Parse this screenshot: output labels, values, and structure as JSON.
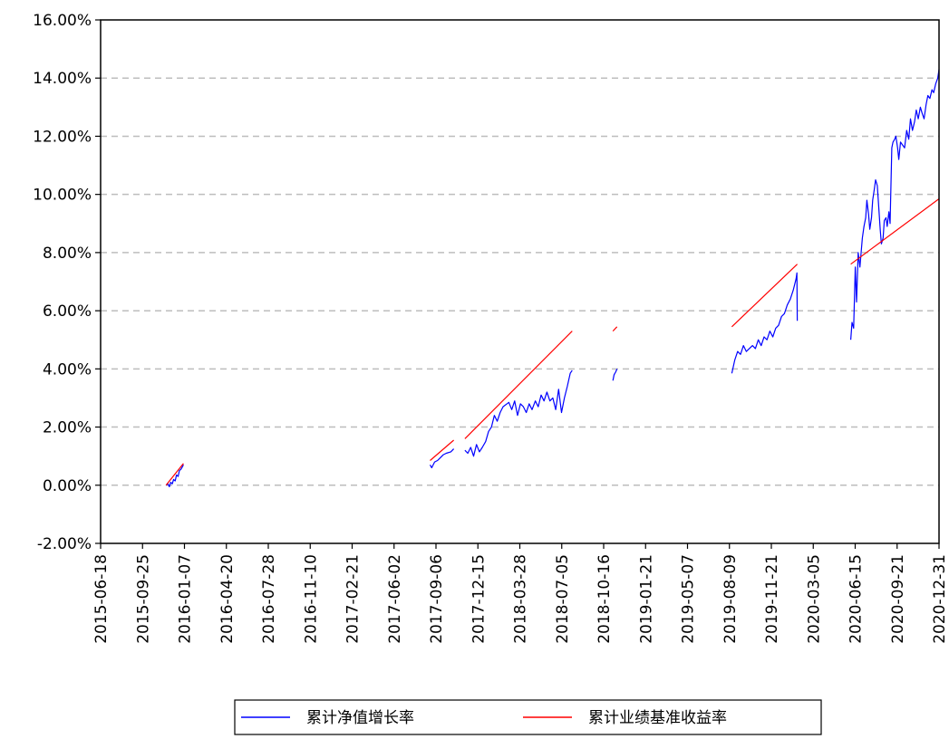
{
  "chart_data": {
    "type": "line",
    "title": "",
    "xlabel": "",
    "ylabel": "",
    "x_ticks": [
      "2015-06-18",
      "2015-09-25",
      "2016-01-07",
      "2016-04-20",
      "2016-07-28",
      "2016-11-10",
      "2017-02-21",
      "2017-06-02",
      "2017-09-06",
      "2017-12-15",
      "2018-03-28",
      "2018-07-05",
      "2018-10-16",
      "2019-01-21",
      "2019-05-07",
      "2019-08-09",
      "2019-11-21",
      "2020-03-05",
      "2020-06-15",
      "2020-09-21",
      "2020-12-31"
    ],
    "y_ticks": [
      "-2.00%",
      "0.00%",
      "2.00%",
      "4.00%",
      "6.00%",
      "8.00%",
      "10.00%",
      "12.00%",
      "14.00%",
      "16.00%"
    ],
    "ylim": [
      -2,
      16
    ],
    "xlim": [
      "2015-06-18",
      "2020-12-31"
    ],
    "grid": "horizontal dashed",
    "legend_position": "bottom-center",
    "series": [
      {
        "name": "累计净值增长率",
        "color": "#0000ff",
        "segments": [
          [
            [
              "2015-11-23",
              0.0
            ],
            [
              "2015-11-27",
              0.05
            ],
            [
              "2015-12-01",
              -0.05
            ],
            [
              "2015-12-04",
              0.1
            ],
            [
              "2015-12-08",
              0.05
            ],
            [
              "2015-12-11",
              0.2
            ],
            [
              "2015-12-15",
              0.15
            ],
            [
              "2015-12-18",
              0.35
            ],
            [
              "2015-12-22",
              0.3
            ],
            [
              "2015-12-25",
              0.5
            ],
            [
              "2015-12-29",
              0.55
            ],
            [
              "2016-01-04",
              0.7
            ]
          ],
          [
            [
              "2017-08-21",
              0.7
            ],
            [
              "2017-08-25",
              0.6
            ],
            [
              "2017-09-01",
              0.8
            ],
            [
              "2017-09-08",
              0.85
            ],
            [
              "2017-09-15",
              0.95
            ],
            [
              "2017-09-22",
              1.05
            ],
            [
              "2017-09-29",
              1.1
            ],
            [
              "2017-10-10",
              1.15
            ],
            [
              "2017-10-17",
              1.25
            ]
          ],
          [
            [
              "2017-11-13",
              1.2
            ],
            [
              "2017-11-20",
              1.1
            ],
            [
              "2017-11-27",
              1.3
            ],
            [
              "2017-12-04",
              1.0
            ],
            [
              "2017-12-11",
              1.4
            ],
            [
              "2017-12-18",
              1.15
            ],
            [
              "2017-12-25",
              1.3
            ],
            [
              "2018-01-02",
              1.5
            ],
            [
              "2018-01-09",
              1.85
            ],
            [
              "2018-01-16",
              2.0
            ],
            [
              "2018-01-23",
              2.4
            ],
            [
              "2018-01-30",
              2.2
            ],
            [
              "2018-02-06",
              2.5
            ],
            [
              "2018-02-13",
              2.7
            ],
            [
              "2018-02-27",
              2.85
            ],
            [
              "2018-03-06",
              2.6
            ],
            [
              "2018-03-13",
              2.9
            ],
            [
              "2018-03-20",
              2.4
            ],
            [
              "2018-03-27",
              2.8
            ],
            [
              "2018-04-03",
              2.7
            ],
            [
              "2018-04-10",
              2.5
            ],
            [
              "2018-04-17",
              2.8
            ],
            [
              "2018-04-24",
              2.6
            ],
            [
              "2018-05-02",
              2.9
            ],
            [
              "2018-05-09",
              2.7
            ],
            [
              "2018-05-16",
              3.1
            ],
            [
              "2018-05-23",
              2.9
            ],
            [
              "2018-05-30",
              3.2
            ],
            [
              "2018-06-06",
              2.9
            ],
            [
              "2018-06-13",
              3.0
            ],
            [
              "2018-06-20",
              2.6
            ],
            [
              "2018-06-27",
              3.3
            ],
            [
              "2018-07-04",
              2.5
            ],
            [
              "2018-07-11",
              3.0
            ],
            [
              "2018-07-18",
              3.4
            ],
            [
              "2018-07-25",
              3.85
            ],
            [
              "2018-07-30",
              3.95
            ]
          ],
          [
            [
              "2018-11-05",
              3.6
            ],
            [
              "2018-11-08",
              3.8
            ],
            [
              "2018-11-12",
              3.9
            ],
            [
              "2018-11-15",
              4.0
            ]
          ],
          [
            [
              "2019-08-19",
              3.85
            ],
            [
              "2019-08-26",
              4.3
            ],
            [
              "2019-09-02",
              4.6
            ],
            [
              "2019-09-09",
              4.5
            ],
            [
              "2019-09-16",
              4.8
            ],
            [
              "2019-09-23",
              4.6
            ],
            [
              "2019-10-08",
              4.8
            ],
            [
              "2019-10-15",
              4.7
            ],
            [
              "2019-10-22",
              5.0
            ],
            [
              "2019-10-29",
              4.8
            ],
            [
              "2019-11-05",
              5.1
            ],
            [
              "2019-11-12",
              5.0
            ],
            [
              "2019-11-19",
              5.3
            ],
            [
              "2019-11-26",
              5.1
            ],
            [
              "2019-12-03",
              5.4
            ],
            [
              "2019-12-10",
              5.5
            ],
            [
              "2019-12-17",
              5.8
            ],
            [
              "2019-12-24",
              5.9
            ],
            [
              "2019-12-31",
              6.2
            ],
            [
              "2020-01-07",
              6.4
            ],
            [
              "2020-01-14",
              6.7
            ],
            [
              "2020-01-21",
              7.1
            ],
            [
              "2020-01-23",
              7.3
            ],
            [
              "2020-01-24",
              5.65
            ]
          ],
          [
            [
              "2020-06-01",
              5.0
            ],
            [
              "2020-06-04",
              5.6
            ],
            [
              "2020-06-08",
              5.4
            ],
            [
              "2020-06-12",
              7.5
            ],
            [
              "2020-06-15",
              6.3
            ],
            [
              "2020-06-19",
              8.0
            ],
            [
              "2020-06-23",
              7.5
            ],
            [
              "2020-06-29",
              8.5
            ],
            [
              "2020-07-03",
              8.9
            ],
            [
              "2020-07-07",
              9.2
            ],
            [
              "2020-07-10",
              9.8
            ],
            [
              "2020-07-14",
              9.3
            ],
            [
              "2020-07-17",
              8.8
            ],
            [
              "2020-07-21",
              9.2
            ],
            [
              "2020-07-24",
              9.8
            ],
            [
              "2020-07-28",
              10.2
            ],
            [
              "2020-07-31",
              10.5
            ],
            [
              "2020-08-04",
              10.3
            ],
            [
              "2020-08-07",
              9.7
            ],
            [
              "2020-08-11",
              8.8
            ],
            [
              "2020-08-14",
              8.3
            ],
            [
              "2020-08-18",
              8.5
            ],
            [
              "2020-08-21",
              9.1
            ],
            [
              "2020-08-25",
              9.2
            ],
            [
              "2020-08-28",
              8.9
            ],
            [
              "2020-09-01",
              9.4
            ],
            [
              "2020-09-04",
              9.0
            ],
            [
              "2020-09-08",
              11.6
            ],
            [
              "2020-09-11",
              11.8
            ],
            [
              "2020-09-15",
              11.9
            ],
            [
              "2020-09-18",
              12.0
            ],
            [
              "2020-09-22",
              11.6
            ],
            [
              "2020-09-25",
              11.2
            ],
            [
              "2020-09-29",
              11.8
            ],
            [
              "2020-10-09",
              11.6
            ],
            [
              "2020-10-14",
              12.2
            ],
            [
              "2020-10-19",
              11.9
            ],
            [
              "2020-10-23",
              12.6
            ],
            [
              "2020-10-28",
              12.2
            ],
            [
              "2020-11-02",
              12.5
            ],
            [
              "2020-11-06",
              12.9
            ],
            [
              "2020-11-11",
              12.6
            ],
            [
              "2020-11-16",
              13.0
            ],
            [
              "2020-11-20",
              12.8
            ],
            [
              "2020-11-25",
              12.6
            ],
            [
              "2020-11-30",
              13.1
            ],
            [
              "2020-12-04",
              13.4
            ],
            [
              "2020-12-09",
              13.3
            ],
            [
              "2020-12-14",
              13.6
            ],
            [
              "2020-12-18",
              13.5
            ],
            [
              "2020-12-23",
              13.8
            ],
            [
              "2020-12-28",
              14.0
            ],
            [
              "2020-12-31",
              14.3
            ]
          ]
        ]
      },
      {
        "name": "累计业绩基准收益率",
        "color": "#ff0000",
        "segments": [
          [
            [
              "2015-11-23",
              0.0
            ],
            [
              "2016-01-04",
              0.75
            ]
          ],
          [
            [
              "2017-08-21",
              0.85
            ],
            [
              "2017-10-17",
              1.55
            ]
          ],
          [
            [
              "2017-11-13",
              1.6
            ],
            [
              "2018-07-30",
              5.3
            ]
          ],
          [
            [
              "2018-11-05",
              5.3
            ],
            [
              "2018-11-15",
              5.45
            ]
          ],
          [
            [
              "2019-08-19",
              5.45
            ],
            [
              "2020-01-24",
              7.6
            ]
          ],
          [
            [
              "2020-06-01",
              7.6
            ],
            [
              "2020-12-31",
              9.85
            ]
          ]
        ]
      }
    ]
  },
  "legend": {
    "items": [
      {
        "label": "累计净值增长率",
        "color": "#0000ff"
      },
      {
        "label": "累计业绩基准收益率",
        "color": "#ff0000"
      }
    ]
  }
}
